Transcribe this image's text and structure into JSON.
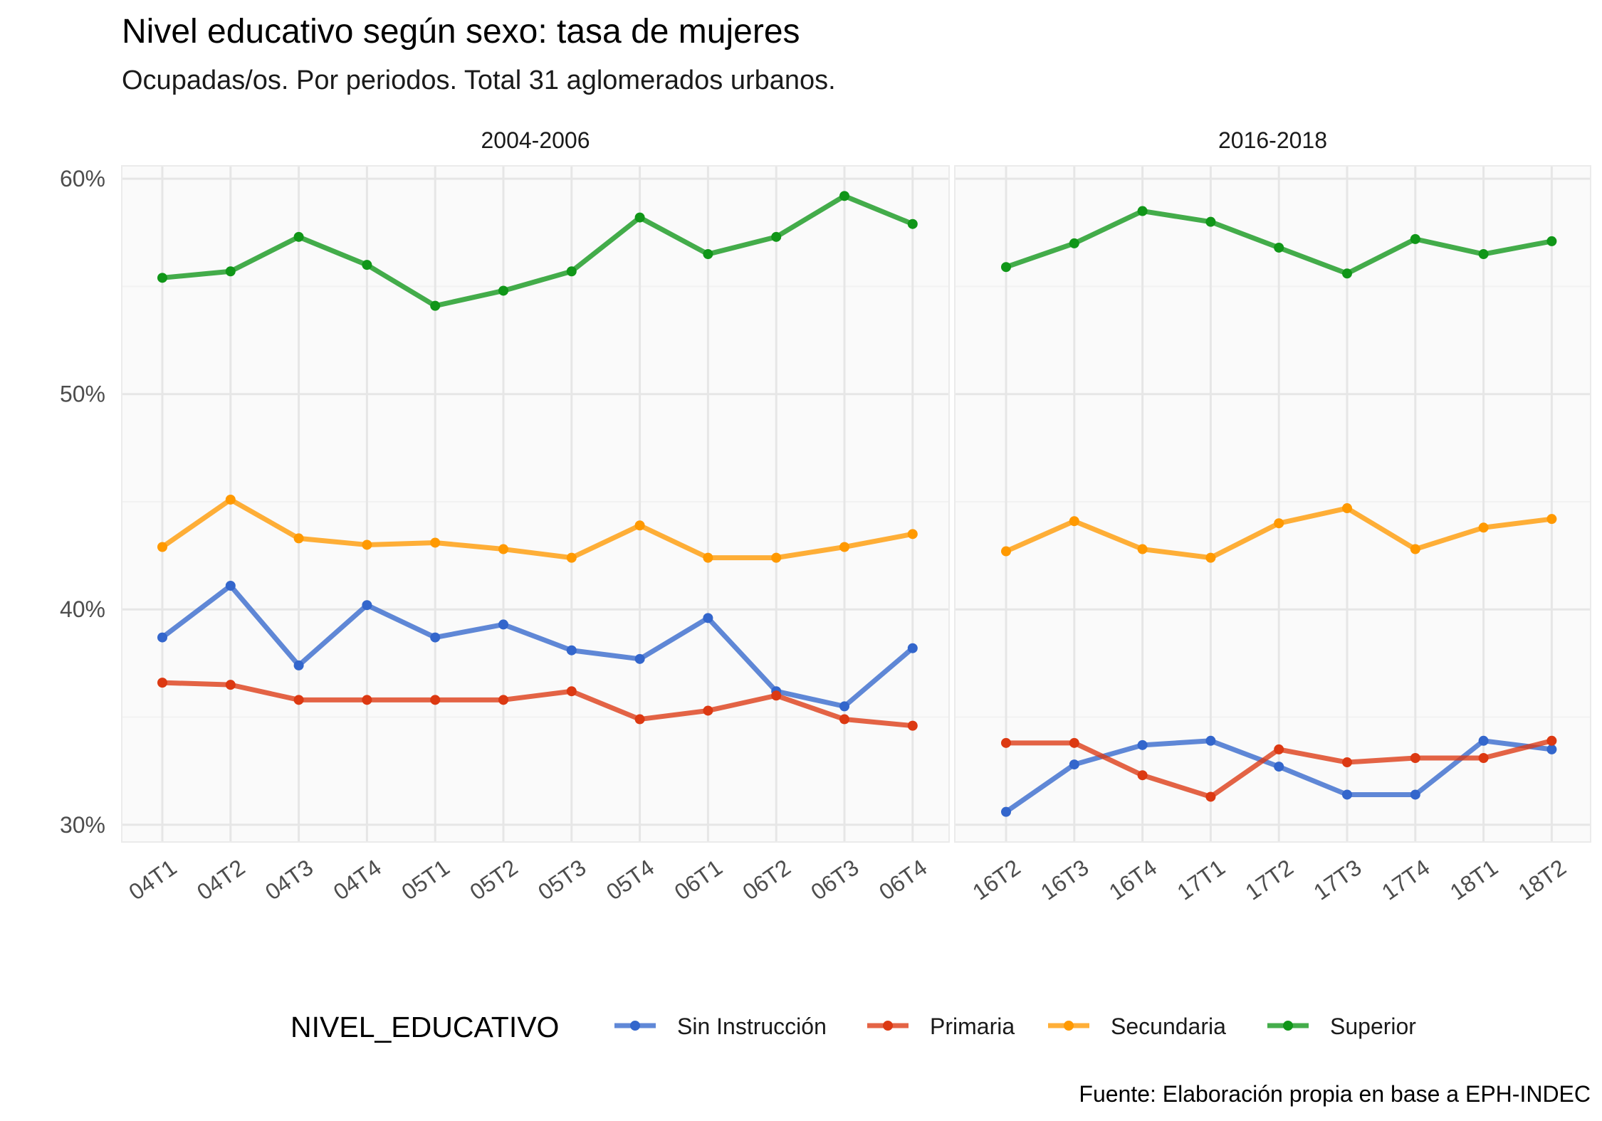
{
  "chart_data": {
    "type": "line",
    "title": "Nivel educativo según sexo: tasa de mujeres",
    "subtitle": "Ocupadas/os. Por periodos. Total 31 aglomerados urbanos.",
    "caption": "Fuente: Elaboración propia en base a EPH-INDEC",
    "ylim": [
      29.2,
      60.6
    ],
    "yticks": [
      30,
      40,
      50,
      60
    ],
    "ytick_labels": [
      "30%",
      "40%",
      "50%",
      "60%"
    ],
    "grid": true,
    "legend": {
      "title": "NIVEL_EDUCATIVO",
      "placement": "bottom",
      "entries": [
        "Sin Instrucción",
        "Primaria",
        "Secundaria",
        "Superior"
      ]
    },
    "colors": {
      "Sin Instrucción": "#3366cc",
      "Primaria": "#dc3912",
      "Secundaria": "#ff9900",
      "Superior": "#109618"
    },
    "panels": [
      {
        "strip": "2004-2006",
        "categories": [
          "04T1",
          "04T2",
          "04T3",
          "04T4",
          "05T1",
          "05T2",
          "05T3",
          "05T4",
          "06T1",
          "06T2",
          "06T3",
          "06T4"
        ],
        "series": [
          {
            "name": "Sin Instrucción",
            "values": [
              38.7,
              41.1,
              37.4,
              40.2,
              38.7,
              39.3,
              38.1,
              37.7,
              39.6,
              36.2,
              35.5,
              38.2
            ]
          },
          {
            "name": "Primaria",
            "values": [
              36.6,
              36.5,
              35.8,
              35.8,
              35.8,
              35.8,
              36.2,
              34.9,
              35.3,
              36.0,
              34.9,
              34.6
            ]
          },
          {
            "name": "Secundaria",
            "values": [
              42.9,
              45.1,
              43.3,
              43.0,
              43.1,
              42.8,
              42.4,
              43.9,
              42.4,
              42.4,
              42.9,
              43.5
            ]
          },
          {
            "name": "Superior",
            "values": [
              55.4,
              55.7,
              57.3,
              56.0,
              54.1,
              54.8,
              55.7,
              58.2,
              56.5,
              57.3,
              59.2,
              57.9
            ]
          }
        ]
      },
      {
        "strip": "2016-2018",
        "categories": [
          "16T2",
          "16T3",
          "16T4",
          "17T1",
          "17T2",
          "17T3",
          "17T4",
          "18T1",
          "18T2"
        ],
        "series": [
          {
            "name": "Sin Instrucción",
            "values": [
              30.6,
              32.8,
              33.7,
              33.9,
              32.7,
              31.4,
              31.4,
              33.9,
              33.5
            ]
          },
          {
            "name": "Primaria",
            "values": [
              33.8,
              33.8,
              32.3,
              31.3,
              33.5,
              32.9,
              33.1,
              33.1,
              33.9
            ]
          },
          {
            "name": "Secundaria",
            "values": [
              42.7,
              44.1,
              42.8,
              42.4,
              44.0,
              44.7,
              42.8,
              43.8,
              44.2
            ]
          },
          {
            "name": "Superior",
            "values": [
              55.9,
              57.0,
              58.5,
              58.0,
              56.8,
              55.6,
              57.2,
              56.5,
              57.1
            ]
          }
        ]
      }
    ]
  }
}
